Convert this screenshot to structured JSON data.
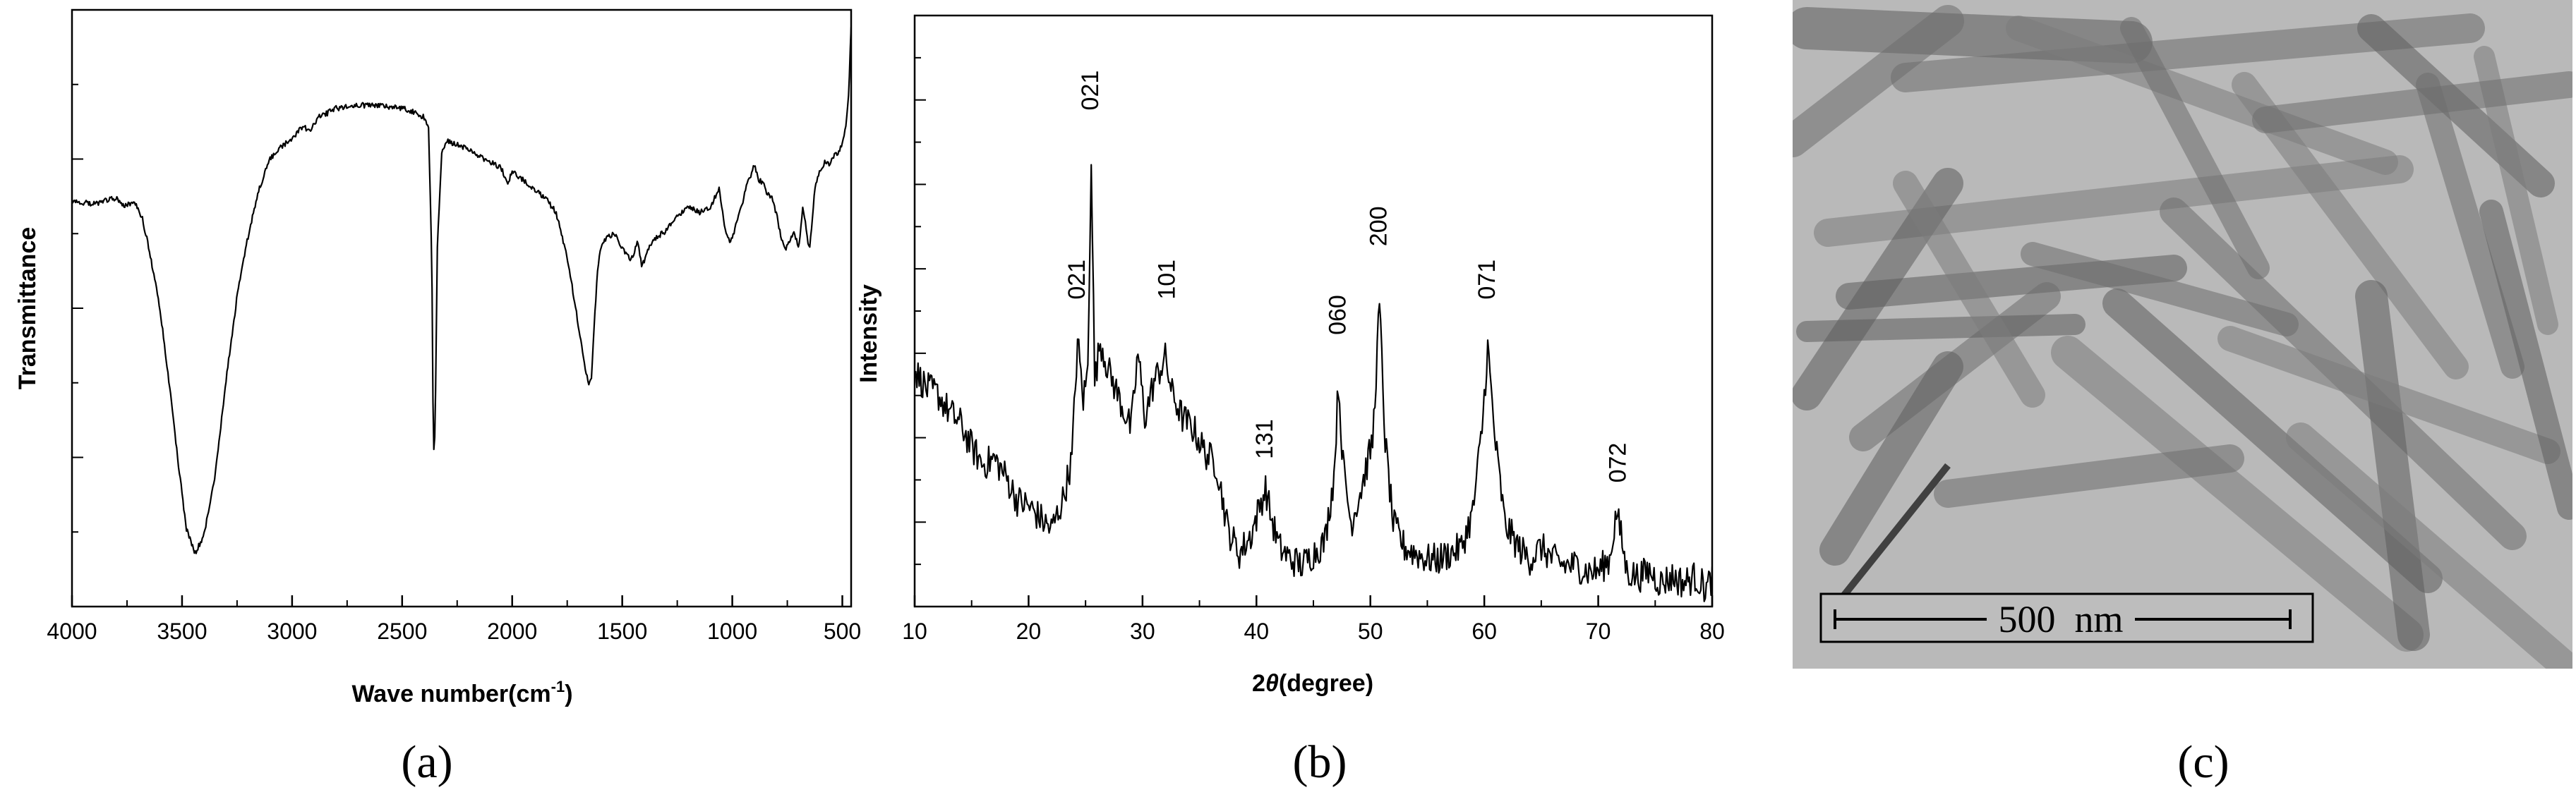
{
  "chart_data": [
    {
      "type": "line",
      "panel_label": "(a)",
      "xlabel": "Wave number(cm",
      "xlabel_sup": "-1",
      "xlabel_end": ")",
      "ylabel": "Transmittance",
      "xlim": [
        4000,
        460
      ],
      "x_reversed": true,
      "ylim": [
        0,
        100
      ],
      "xticks": [
        4000,
        3500,
        3000,
        2500,
        2000,
        1500,
        1000,
        500
      ],
      "y_tick_labels_shown": false,
      "grid": false,
      "series": [
        {
          "x": [
            4000,
            3900,
            3800,
            3760,
            3720,
            3680,
            3650,
            3600,
            3560,
            3520,
            3480,
            3440,
            3400,
            3350,
            3300,
            3250,
            3200,
            3150,
            3100,
            3050,
            3000,
            2950,
            2920,
            2880,
            2850,
            2800,
            2700,
            2600,
            2500,
            2450,
            2400,
            2380,
            2365,
            2358,
            2350,
            2340,
            2320,
            2300,
            2250,
            2200,
            2150,
            2100,
            2050,
            2020,
            2000,
            1950,
            1900,
            1850,
            1800,
            1760,
            1720,
            1690,
            1665,
            1650,
            1640,
            1630,
            1615,
            1600,
            1570,
            1530,
            1500,
            1460,
            1430,
            1410,
            1380,
            1340,
            1300,
            1250,
            1200,
            1150,
            1100,
            1080,
            1060,
            1045,
            1030,
            1010,
            990,
            960,
            930,
            900,
            880,
            860,
            840,
            820,
            800,
            780,
            760,
            740,
            720,
            700,
            690,
            680,
            670,
            660,
            650,
            640,
            630,
            620,
            600,
            580,
            560,
            540,
            520,
            500,
            490,
            480,
            470,
            465,
            460
          ],
          "y": [
            68.0,
            67.5,
            68.5,
            67.0,
            68.0,
            65.0,
            60.0,
            50.0,
            38.0,
            25.0,
            13.0,
            9.0,
            12.0,
            22.0,
            38.0,
            52.0,
            62.0,
            70.0,
            75.0,
            77.0,
            78.5,
            80.5,
            79.5,
            82.0,
            82.5,
            83.5,
            84.0,
            84.0,
            83.5,
            83.0,
            82.0,
            80.0,
            58.0,
            25.0,
            30.0,
            60.0,
            76.0,
            78.0,
            77.5,
            76.5,
            75.5,
            74.5,
            73.5,
            71.0,
            73.0,
            71.5,
            70.0,
            68.5,
            66.0,
            60.0,
            52.0,
            45.0,
            39.0,
            37.0,
            38.5,
            45.0,
            55.0,
            60.0,
            62.0,
            62.5,
            60.0,
            58.0,
            61.0,
            57.0,
            60.0,
            62.0,
            63.0,
            65.5,
            67.0,
            66.0,
            67.0,
            68.5,
            70.0,
            66.0,
            63.0,
            61.0,
            63.0,
            67.0,
            71.0,
            74.0,
            71.5,
            71.0,
            69.0,
            68.5,
            66.0,
            62.0,
            60.0,
            61.0,
            63.0,
            60.5,
            62.5,
            67.0,
            65.0,
            62.0,
            60.0,
            63.0,
            68.0,
            71.0,
            73.0,
            74.5,
            74.0,
            75.5,
            76.0,
            77.5,
            79.0,
            82.0,
            86.0,
            93.0,
            97.0
          ]
        }
      ]
    },
    {
      "type": "line",
      "panel_label": "(b)",
      "xlabel": "2θ(degree)",
      "xlabel_theta": "θ",
      "xlabel_parts": [
        "2",
        "θ",
        "(degree)"
      ],
      "ylabel": "Intensity",
      "xlim": [
        10,
        80
      ],
      "ylim": [
        0,
        100
      ],
      "xticks": [
        10,
        20,
        30,
        40,
        50,
        60,
        70,
        80
      ],
      "y_tick_labels_shown": false,
      "grid": false,
      "peak_labels": [
        {
          "text": "021",
          "x": 24.3,
          "y": 51
        },
        {
          "text": "021",
          "x": 25.5,
          "y": 83
        },
        {
          "text": "101",
          "x": 32.2,
          "y": 51
        },
        {
          "text": "131",
          "x": 40.8,
          "y": 24
        },
        {
          "text": "060",
          "x": 47.2,
          "y": 45
        },
        {
          "text": "200",
          "x": 50.8,
          "y": 60
        },
        {
          "text": "071",
          "x": 60.3,
          "y": 51
        },
        {
          "text": "072",
          "x": 71.8,
          "y": 20
        }
      ],
      "series": [
        {
          "x": [
            10.0,
            11.0,
            12.0,
            13.0,
            14.0,
            15.0,
            16.0,
            17.0,
            18.0,
            19.0,
            20.0,
            21.0,
            22.0,
            23.0,
            23.8,
            24.3,
            24.8,
            25.2,
            25.5,
            25.8,
            26.3,
            27.0,
            28.0,
            29.0,
            29.6,
            30.2,
            31.0,
            32.0,
            32.6,
            33.5,
            34.5,
            35.5,
            36.5,
            37.5,
            38.5,
            39.5,
            40.3,
            40.8,
            41.3,
            42.0,
            43.0,
            44.0,
            45.0,
            46.0,
            46.8,
            47.2,
            47.6,
            48.3,
            49.2,
            50.2,
            50.8,
            51.3,
            52.0,
            53.0,
            54.0,
            55.0,
            56.0,
            57.0,
            58.0,
            59.0,
            59.8,
            60.3,
            60.9,
            61.8,
            63.0,
            64.0,
            65.0,
            66.0,
            67.0,
            68.0,
            69.0,
            70.0,
            71.0,
            71.6,
            72.0,
            72.5,
            73.5,
            74.5,
            75.5,
            76.5,
            77.5,
            78.5,
            79.5,
            80.0
          ],
          "y": [
            40,
            37,
            36,
            33,
            31,
            27,
            24,
            25,
            22,
            18,
            17,
            15,
            13,
            18,
            25,
            45,
            35,
            40,
            77,
            38,
            45,
            40,
            35,
            30,
            43,
            32,
            38,
            42,
            36,
            32,
            30,
            26,
            24,
            13,
            9,
            12,
            17,
            20,
            15,
            10,
            8,
            7,
            9,
            11,
            22,
            38,
            24,
            14,
            20,
            28,
            51,
            28,
            14,
            10,
            9,
            8,
            8,
            9,
            10,
            16,
            30,
            44,
            29,
            14,
            10,
            8,
            10,
            8,
            7,
            7,
            6,
            6,
            8,
            16,
            12,
            6,
            5,
            6,
            4,
            5,
            4,
            5,
            3,
            5
          ]
        }
      ]
    }
  ],
  "figure_c": {
    "panel_label": "(c)",
    "scale_bar_label": "500  nm"
  }
}
